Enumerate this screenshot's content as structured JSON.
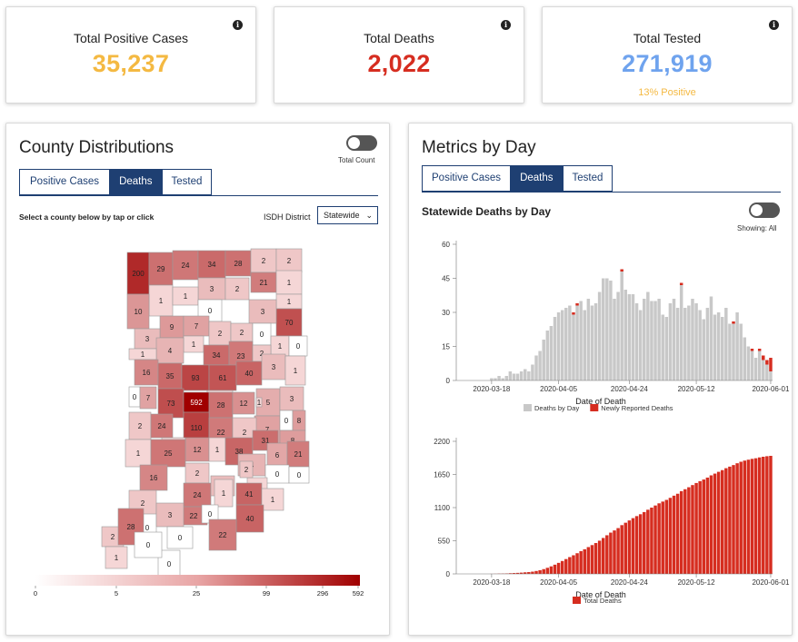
{
  "stats": {
    "positive": {
      "title": "Total Positive Cases",
      "value": "35,237",
      "color": "#f4b942"
    },
    "deaths": {
      "title": "Total Deaths",
      "value": "2,022",
      "color": "#d62d20"
    },
    "tested": {
      "title": "Total Tested",
      "value": "271,919",
      "color": "#6fa3ee",
      "sub": "13% Positive"
    }
  },
  "county": {
    "title": "County Distributions",
    "toggle_label": "Total Count",
    "tabs": [
      "Positive Cases",
      "Deaths",
      "Tested"
    ],
    "active_tab": "Deaths",
    "hint": "Select a county below by tap or click",
    "district_label": "ISDH District",
    "district_value": "Statewide",
    "legend_ticks": [
      "0",
      "5",
      "25",
      "99",
      "296",
      "592"
    ],
    "counties": [
      "200",
      "29",
      "24",
      "34",
      "28",
      "2",
      "2",
      "21",
      "1",
      "3",
      "2",
      "1",
      "1",
      "0",
      "1",
      "10",
      "70",
      "3",
      "9",
      "7",
      "2",
      "2",
      "0",
      "1",
      "0",
      "3",
      "1",
      "34",
      "23",
      "2",
      "0",
      "4",
      "1",
      "2",
      "16",
      "35",
      "93",
      "61",
      "40",
      "3",
      "1",
      "0",
      "1",
      "0",
      "7",
      "73",
      "592",
      "28",
      "12",
      "5",
      "3",
      "7",
      "0",
      "8",
      "2",
      "24",
      "110",
      "22",
      "2",
      "1",
      "8",
      "1",
      "12",
      "1",
      "38",
      "31",
      "1",
      "25",
      "6",
      "21",
      "2",
      "4",
      "0",
      "0",
      "16",
      "24",
      "3",
      "1",
      "22",
      "1",
      "0",
      "2",
      "0",
      "3",
      "41",
      "2",
      "1",
      "40",
      "22",
      "0",
      "0",
      "2",
      "28",
      "1",
      "0"
    ]
  },
  "metrics": {
    "title": "Metrics by Day",
    "tabs": [
      "Positive Cases",
      "Deaths",
      "Tested"
    ],
    "active_tab": "Deaths",
    "chart_title": "Statewide Deaths by Day",
    "toggle_label": "Showing: All"
  },
  "chart_data": [
    {
      "type": "bar",
      "title": "",
      "xlabel": "Date of Death",
      "ylabel": "",
      "ylim": [
        0,
        60
      ],
      "y_ticks": [
        0,
        15,
        30,
        45,
        60
      ],
      "x_ticks": [
        "2020-03-18",
        "2020-04-05",
        "2020-04-24",
        "2020-05-12",
        "2020-06-01"
      ],
      "x_tick_index": [
        9,
        27,
        46,
        64,
        84
      ],
      "legend": [
        "Deaths by Day",
        "Newly Reported Deaths"
      ],
      "colors": [
        "#c8c8c8",
        "#d62d20"
      ],
      "series": [
        {
          "name": "Deaths by Day",
          "values": [
            0,
            0,
            0,
            0,
            0,
            0,
            0,
            0,
            0,
            1,
            1,
            2,
            1,
            2,
            4,
            3,
            3,
            4,
            5,
            4,
            7,
            11,
            13,
            18,
            22,
            24,
            28,
            30,
            31,
            32,
            33,
            29,
            33,
            35,
            31,
            36,
            33,
            34,
            39,
            45,
            45,
            44,
            36,
            39,
            48,
            40,
            38,
            38,
            34,
            31,
            36,
            39,
            35,
            35,
            36,
            29,
            28,
            34,
            36,
            32,
            42,
            32,
            33,
            36,
            34,
            31,
            27,
            32,
            37,
            29,
            30,
            28,
            32,
            25,
            25,
            30,
            25,
            19,
            15,
            13,
            10,
            13,
            9,
            7,
            4
          ]
        },
        {
          "name": "Newly Reported Deaths",
          "values": [
            0,
            0,
            0,
            0,
            0,
            0,
            0,
            0,
            0,
            0,
            0,
            0,
            0,
            0,
            0,
            0,
            0,
            0,
            0,
            0,
            0,
            0,
            0,
            0,
            0,
            0,
            0,
            0,
            0,
            0,
            0,
            1,
            1,
            0,
            0,
            0,
            0,
            0,
            0,
            0,
            0,
            0,
            0,
            0,
            1,
            0,
            0,
            0,
            0,
            0,
            0,
            0,
            0,
            0,
            0,
            0,
            0,
            0,
            0,
            0,
            1,
            0,
            0,
            0,
            0,
            0,
            0,
            0,
            0,
            0,
            0,
            0,
            0,
            0,
            1,
            0,
            0,
            0,
            0,
            1,
            0,
            1,
            2,
            2,
            6
          ]
        }
      ]
    },
    {
      "type": "bar",
      "title": "",
      "xlabel": "Date of Death",
      "ylabel": "",
      "ylim": [
        0,
        2200
      ],
      "y_ticks": [
        0,
        550,
        1100,
        1650,
        2200
      ],
      "x_ticks": [
        "2020-03-18",
        "2020-04-05",
        "2020-04-24",
        "2020-05-12",
        "2020-06-01"
      ],
      "x_tick_index": [
        9,
        27,
        46,
        64,
        84
      ],
      "legend": [
        "Total Deaths"
      ],
      "colors": [
        "#d62d20"
      ],
      "series": [
        {
          "name": "Total Deaths",
          "values": [
            0,
            0,
            0,
            0,
            0,
            0,
            0,
            0,
            0,
            1,
            2,
            4,
            5,
            7,
            11,
            14,
            17,
            21,
            26,
            30,
            37,
            48,
            61,
            79,
            101,
            125,
            153,
            183,
            214,
            246,
            279,
            309,
            343,
            378,
            409,
            445,
            478,
            512,
            551,
            596,
            641,
            685,
            721,
            760,
            809,
            849,
            887,
            925,
            959,
            990,
            1026,
            1065,
            1100,
            1135,
            1171,
            1200,
            1228,
            1262,
            1298,
            1330,
            1373,
            1405,
            1438,
            1474,
            1508,
            1539,
            1566,
            1598,
            1635,
            1664,
            1694,
            1722,
            1754,
            1780,
            1806,
            1836,
            1861,
            1880,
            1895,
            1909,
            1919,
            1933,
            1944,
            1953,
            1959
          ]
        }
      ]
    }
  ]
}
